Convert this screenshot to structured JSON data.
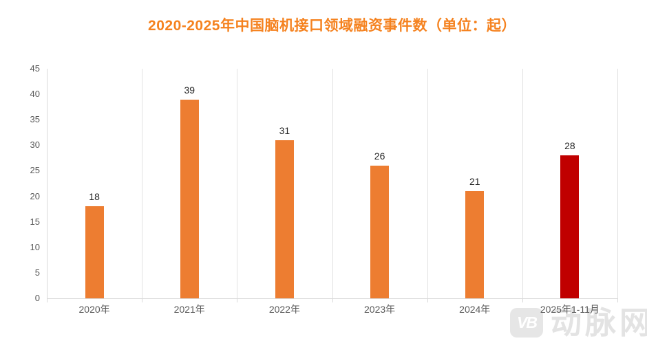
{
  "chart_data": {
    "type": "bar",
    "title": "2020-2025年中国脑机接口领域融资事件数（单位：起）",
    "categories": [
      "2020年",
      "2021年",
      "2022年",
      "2023年",
      "2024年",
      "2025年1-11月"
    ],
    "values": [
      18,
      39,
      31,
      26,
      21,
      28
    ],
    "bar_colors": [
      "#ED7D31",
      "#ED7D31",
      "#ED7D31",
      "#ED7D31",
      "#ED7D31",
      "#C00000"
    ],
    "xlabel": "",
    "ylabel": "",
    "ylim": [
      0,
      45
    ],
    "ytick_step": 5,
    "grid": "vertical category separators only",
    "legend": "none",
    "data_labels": "above bars"
  },
  "colors": {
    "title": "#F5821F",
    "bar_default": "#ED7D31",
    "bar_highlight": "#C00000",
    "axis_line": "#D9D9D9",
    "gridline": "#E2E2E2",
    "axis_label": "#595959",
    "value_label": "#262626",
    "watermark": "#E3E3E3"
  },
  "watermark": {
    "logo_text": "VB",
    "brand_text": "动脉网"
  }
}
